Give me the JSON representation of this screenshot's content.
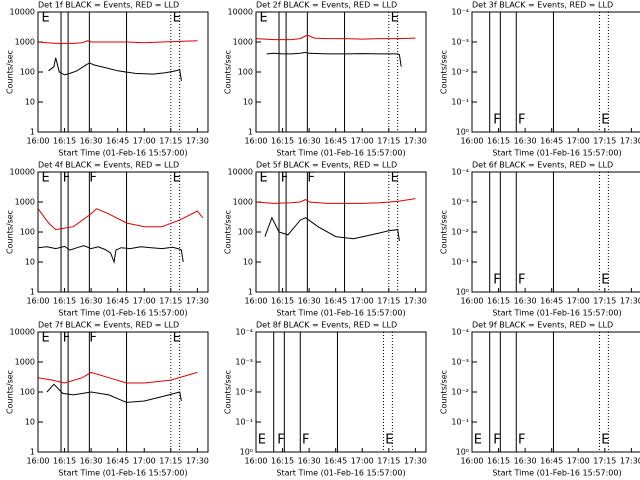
{
  "chart_data": [
    {
      "type": "line",
      "title": "Det 1f BLACK = Events, RED = LLD",
      "xlabel": "Start Time (01-Feb-16 15:57:00)",
      "ylabel": "Counts/sec",
      "log_y": true,
      "xlim": [
        0,
        96
      ],
      "xticks": [
        {
          "value": 0,
          "label": "16:00"
        },
        {
          "value": 15,
          "label": "16:15"
        },
        {
          "value": 30,
          "label": "16:30"
        },
        {
          "value": 45,
          "label": "16:45"
        },
        {
          "value": 60,
          "label": "17:00"
        },
        {
          "value": 75,
          "label": "17:15"
        },
        {
          "value": 90,
          "label": "17:30"
        }
      ],
      "ylim": [
        1,
        10000
      ],
      "yticks": [
        1,
        10,
        100,
        1000,
        10000
      ],
      "vlines": [
        13,
        17,
        29,
        50
      ],
      "vlines_dotted": [
        75,
        80
      ],
      "annotations": [
        {
          "text": "E",
          "x": 2,
          "position": "top"
        },
        {
          "text": "E",
          "x": 76,
          "position": "top"
        }
      ],
      "series": [
        {
          "name": "Events",
          "color": "#000000",
          "x": [
            6,
            9,
            10,
            12,
            15,
            18,
            22,
            27,
            29,
            32,
            38,
            45,
            55,
            65,
            72,
            78,
            80,
            81
          ],
          "values": [
            110,
            150,
            300,
            100,
            80,
            90,
            110,
            170,
            200,
            170,
            140,
            110,
            90,
            85,
            95,
            110,
            120,
            50
          ]
        },
        {
          "name": "LLD",
          "color": "#dd0000",
          "x": [
            0,
            5,
            10,
            15,
            20,
            25,
            28,
            30,
            40,
            50,
            60,
            70,
            80,
            90
          ],
          "values": [
            1000,
            950,
            900,
            900,
            900,
            950,
            1100,
            1000,
            1000,
            1000,
            950,
            1000,
            1050,
            1100
          ]
        }
      ]
    },
    {
      "type": "line",
      "title": "Det 2f BLACK = Events, RED = LLD",
      "xlabel": "Start Time (01-Feb-16 15:57:00)",
      "ylabel": "Counts/sec",
      "log_y": true,
      "xlim": [
        0,
        96
      ],
      "xticks": [
        {
          "value": 0,
          "label": "16:00"
        },
        {
          "value": 15,
          "label": "16:15"
        },
        {
          "value": 30,
          "label": "16:30"
        },
        {
          "value": 45,
          "label": "16:45"
        },
        {
          "value": 60,
          "label": "17:00"
        },
        {
          "value": 75,
          "label": "17:15"
        },
        {
          "value": 90,
          "label": "17:30"
        }
      ],
      "ylim": [
        1,
        10000
      ],
      "yticks": [
        1,
        10,
        100,
        1000,
        10000
      ],
      "vlines": [
        13,
        17,
        29,
        50
      ],
      "vlines_dotted": [
        75,
        80
      ],
      "annotations": [
        {
          "text": "E",
          "x": 2,
          "position": "top"
        },
        {
          "text": "E",
          "x": 76,
          "position": "top"
        }
      ],
      "series": [
        {
          "name": "Events",
          "color": "#000000",
          "x": [
            6,
            10,
            15,
            20,
            25,
            28,
            30,
            40,
            50,
            60,
            70,
            80,
            81,
            82
          ],
          "values": [
            400,
            420,
            400,
            400,
            420,
            450,
            420,
            400,
            400,
            410,
            400,
            400,
            380,
            150
          ]
        },
        {
          "name": "LLD",
          "color": "#dd0000",
          "x": [
            0,
            10,
            20,
            25,
            29,
            33,
            40,
            50,
            60,
            70,
            80,
            90
          ],
          "values": [
            1300,
            1200,
            1200,
            1300,
            1700,
            1350,
            1300,
            1300,
            1250,
            1300,
            1300,
            1350
          ]
        }
      ]
    },
    {
      "type": "line",
      "title": "Det 3f BLACK = Events, RED = LLD",
      "xlabel": "Start Time (01-Feb-16 15:57:00)",
      "ylabel": "Counts/sec",
      "log_y": true,
      "xlim": [
        0,
        96
      ],
      "xticks": [
        {
          "value": 0,
          "label": "16:00"
        },
        {
          "value": 15,
          "label": "16:15"
        },
        {
          "value": 30,
          "label": "16:30"
        },
        {
          "value": 45,
          "label": "16:45"
        },
        {
          "value": 60,
          "label": "17:00"
        },
        {
          "value": 75,
          "label": "17:15"
        },
        {
          "value": 90,
          "label": "17:30"
        }
      ],
      "ylim": [
        1,
        0.0001
      ],
      "yticks": [
        {
          "value": 0.0001,
          "label": "10⁻⁴"
        },
        {
          "value": 0.001,
          "label": "10⁻³"
        },
        {
          "value": 0.01,
          "label": "10⁻²"
        },
        {
          "value": 0.1,
          "label": "10⁻¹"
        },
        {
          "value": 1,
          "label": "10⁰"
        }
      ],
      "vlines": [
        10,
        16,
        25,
        46
      ],
      "vlines_dotted": [
        72,
        77
      ],
      "annotations": [
        {
          "text": "F",
          "x": 12,
          "position": "bottom"
        },
        {
          "text": "F",
          "x": 26,
          "position": "bottom"
        },
        {
          "text": "E",
          "x": 73,
          "position": "bottom"
        }
      ],
      "series": []
    },
    {
      "type": "line",
      "title": "Det 4f BLACK = Events, RED = LLD",
      "xlabel": "Start Time (01-Feb-16 15:57:00)",
      "ylabel": "Counts/sec",
      "log_y": true,
      "xlim": [
        0,
        96
      ],
      "xticks": [
        {
          "value": 0,
          "label": "16:00"
        },
        {
          "value": 15,
          "label": "16:15"
        },
        {
          "value": 30,
          "label": "16:30"
        },
        {
          "value": 45,
          "label": "16:45"
        },
        {
          "value": 60,
          "label": "17:00"
        },
        {
          "value": 75,
          "label": "17:15"
        },
        {
          "value": 90,
          "label": "17:30"
        }
      ],
      "ylim": [
        1,
        10000
      ],
      "yticks": [
        1,
        10,
        100,
        1000,
        10000
      ],
      "vlines": [
        13,
        17,
        29,
        50
      ],
      "vlines_dotted": [
        75,
        80
      ],
      "annotations": [
        {
          "text": "E",
          "x": 2,
          "position": "top"
        },
        {
          "text": "F",
          "x": 14,
          "position": "top"
        },
        {
          "text": "F",
          "x": 29,
          "position": "top"
        },
        {
          "text": "E",
          "x": 76,
          "position": "top"
        }
      ],
      "series": [
        {
          "name": "Events",
          "color": "#000000",
          "x": [
            0,
            5,
            10,
            15,
            18,
            22,
            26,
            30,
            34,
            38,
            41,
            43,
            44,
            47,
            52,
            58,
            64,
            70,
            76,
            80,
            81,
            82
          ],
          "values": [
            30,
            32,
            28,
            33,
            25,
            30,
            35,
            28,
            32,
            26,
            20,
            10,
            25,
            30,
            28,
            32,
            30,
            28,
            31,
            27,
            25,
            10
          ]
        },
        {
          "name": "LLD",
          "color": "#dd0000",
          "x": [
            0,
            6,
            10,
            20,
            30,
            33,
            40,
            50,
            60,
            70,
            80,
            90,
            93
          ],
          "values": [
            600,
            200,
            120,
            150,
            400,
            600,
            400,
            200,
            150,
            150,
            250,
            500,
            300
          ]
        }
      ]
    },
    {
      "type": "line",
      "title": "Det 5f BLACK = Events, RED = LLD",
      "xlabel": "Start Time (01-Feb-16 15:57:00)",
      "ylabel": "Counts/sec",
      "log_y": true,
      "xlim": [
        0,
        96
      ],
      "xticks": [
        {
          "value": 0,
          "label": "16:00"
        },
        {
          "value": 15,
          "label": "16:15"
        },
        {
          "value": 30,
          "label": "16:30"
        },
        {
          "value": 45,
          "label": "16:45"
        },
        {
          "value": 60,
          "label": "17:00"
        },
        {
          "value": 75,
          "label": "17:15"
        },
        {
          "value": 90,
          "label": "17:30"
        }
      ],
      "ylim": [
        1,
        10000
      ],
      "yticks": [
        1,
        10,
        100,
        1000,
        10000
      ],
      "vlines": [
        13,
        17,
        29,
        50
      ],
      "vlines_dotted": [
        75,
        80
      ],
      "annotations": [
        {
          "text": "E",
          "x": 2,
          "position": "top"
        },
        {
          "text": "F",
          "x": 14,
          "position": "top"
        },
        {
          "text": "F",
          "x": 29,
          "position": "top"
        },
        {
          "text": "E",
          "x": 76,
          "position": "top"
        }
      ],
      "series": [
        {
          "name": "Events",
          "color": "#000000",
          "x": [
            5,
            9,
            13,
            18,
            25,
            28,
            35,
            45,
            55,
            65,
            75,
            80,
            81
          ],
          "values": [
            70,
            300,
            100,
            80,
            250,
            300,
            150,
            70,
            60,
            80,
            110,
            120,
            50
          ]
        },
        {
          "name": "LLD",
          "color": "#dd0000",
          "x": [
            0,
            10,
            20,
            25,
            28,
            30,
            40,
            50,
            60,
            70,
            80,
            90
          ],
          "values": [
            1000,
            900,
            950,
            1000,
            1200,
            1000,
            900,
            900,
            900,
            950,
            1050,
            1300
          ]
        }
      ]
    },
    {
      "type": "line",
      "title": "Det 6f BLACK = Events, RED = LLD",
      "xlabel": "Start Time (01-Feb-16 15:57:00)",
      "ylabel": "Counts/sec",
      "log_y": true,
      "xlim": [
        0,
        96
      ],
      "xticks": [
        {
          "value": 0,
          "label": "16:00"
        },
        {
          "value": 15,
          "label": "16:15"
        },
        {
          "value": 30,
          "label": "16:30"
        },
        {
          "value": 45,
          "label": "16:45"
        },
        {
          "value": 60,
          "label": "17:00"
        },
        {
          "value": 75,
          "label": "17:15"
        },
        {
          "value": 90,
          "label": "17:30"
        }
      ],
      "ylim": [
        1,
        0.0001
      ],
      "yticks": [
        {
          "value": 0.0001,
          "label": "10⁻⁴"
        },
        {
          "value": 0.001,
          "label": "10⁻³"
        },
        {
          "value": 0.01,
          "label": "10⁻²"
        },
        {
          "value": 0.1,
          "label": "10⁻¹"
        },
        {
          "value": 1,
          "label": "10⁰"
        }
      ],
      "vlines": [
        10,
        16,
        25,
        46
      ],
      "vlines_dotted": [
        72,
        77
      ],
      "annotations": [
        {
          "text": "F",
          "x": 12,
          "position": "bottom"
        },
        {
          "text": "F",
          "x": 26,
          "position": "bottom"
        },
        {
          "text": "E",
          "x": 73,
          "position": "bottom"
        }
      ],
      "series": []
    },
    {
      "type": "line",
      "title": "Det 7f BLACK = Events, RED = LLD",
      "xlabel": "Start Time (01-Feb-16 15:57:00)",
      "ylabel": "Counts/sec",
      "log_y": true,
      "xlim": [
        0,
        96
      ],
      "xticks": [
        {
          "value": 0,
          "label": "16:00"
        },
        {
          "value": 15,
          "label": "16:15"
        },
        {
          "value": 30,
          "label": "16:30"
        },
        {
          "value": 45,
          "label": "16:45"
        },
        {
          "value": 60,
          "label": "17:00"
        },
        {
          "value": 75,
          "label": "17:15"
        },
        {
          "value": 90,
          "label": "17:30"
        }
      ],
      "ylim": [
        1,
        10000
      ],
      "yticks": [
        1,
        10,
        100,
        1000,
        10000
      ],
      "vlines": [
        13,
        17,
        29,
        50
      ],
      "vlines_dotted": [
        75,
        80
      ],
      "annotations": [
        {
          "text": "E",
          "x": 2,
          "position": "top"
        },
        {
          "text": "F",
          "x": 14,
          "position": "top"
        },
        {
          "text": "F",
          "x": 29,
          "position": "top"
        },
        {
          "text": "E",
          "x": 76,
          "position": "top"
        }
      ],
      "series": [
        {
          "name": "Events",
          "color": "#000000",
          "x": [
            5,
            9,
            14,
            20,
            30,
            40,
            50,
            60,
            70,
            80,
            81
          ],
          "values": [
            100,
            180,
            90,
            80,
            100,
            80,
            45,
            50,
            70,
            100,
            50
          ]
        },
        {
          "name": "LLD",
          "color": "#dd0000",
          "x": [
            0,
            8,
            15,
            25,
            30,
            40,
            50,
            60,
            75,
            90
          ],
          "values": [
            300,
            250,
            200,
            300,
            450,
            300,
            200,
            200,
            250,
            450
          ]
        }
      ]
    },
    {
      "type": "line",
      "title": "Det 8f BLACK = Events, RED = LLD",
      "xlabel": "Start Time (01-Feb-16 15:57:00)",
      "ylabel": "Counts/sec",
      "log_y": true,
      "xlim": [
        0,
        96
      ],
      "xticks": [
        {
          "value": 0,
          "label": "16:00"
        },
        {
          "value": 15,
          "label": "16:15"
        },
        {
          "value": 30,
          "label": "16:30"
        },
        {
          "value": 45,
          "label": "16:45"
        },
        {
          "value": 60,
          "label": "17:00"
        },
        {
          "value": 75,
          "label": "17:15"
        },
        {
          "value": 90,
          "label": "17:30"
        }
      ],
      "ylim": [
        1,
        0.0001
      ],
      "yticks": [
        {
          "value": 0.0001,
          "label": "10⁻⁴"
        },
        {
          "value": 0.001,
          "label": "10⁻³"
        },
        {
          "value": 0.01,
          "label": "10⁻²"
        },
        {
          "value": 0.1,
          "label": "10⁻¹"
        },
        {
          "value": 1,
          "label": "10⁰"
        }
      ],
      "vlines": [
        10,
        16,
        25,
        46
      ],
      "vlines_dotted": [
        72,
        77
      ],
      "annotations": [
        {
          "text": "E",
          "x": 1,
          "position": "bottom"
        },
        {
          "text": "F",
          "x": 12,
          "position": "bottom"
        },
        {
          "text": "F",
          "x": 26,
          "position": "bottom"
        },
        {
          "text": "E",
          "x": 73,
          "position": "bottom"
        }
      ],
      "series": []
    },
    {
      "type": "line",
      "title": "Det 9f BLACK = Events, RED = LLD",
      "xlabel": "Start Time (01-Feb-16 15:57:00)",
      "ylabel": "Counts/sec",
      "log_y": true,
      "xlim": [
        0,
        96
      ],
      "xticks": [
        {
          "value": 0,
          "label": "16:00"
        },
        {
          "value": 15,
          "label": "16:15"
        },
        {
          "value": 30,
          "label": "16:30"
        },
        {
          "value": 45,
          "label": "16:45"
        },
        {
          "value": 60,
          "label": "17:00"
        },
        {
          "value": 75,
          "label": "17:15"
        },
        {
          "value": 90,
          "label": "17:30"
        }
      ],
      "ylim": [
        1,
        0.0001
      ],
      "yticks": [
        {
          "value": 0.0001,
          "label": "10⁻⁴"
        },
        {
          "value": 0.001,
          "label": "10⁻³"
        },
        {
          "value": 0.01,
          "label": "10⁻²"
        },
        {
          "value": 0.1,
          "label": "10⁻¹"
        },
        {
          "value": 1,
          "label": "10⁰"
        }
      ],
      "vlines": [
        10,
        16,
        25,
        46
      ],
      "vlines_dotted": [
        72,
        77
      ],
      "annotations": [
        {
          "text": "E",
          "x": 1,
          "position": "bottom"
        },
        {
          "text": "F",
          "x": 12,
          "position": "bottom"
        },
        {
          "text": "F",
          "x": 26,
          "position": "bottom"
        },
        {
          "text": "E",
          "x": 73,
          "position": "bottom"
        }
      ],
      "series": []
    }
  ]
}
